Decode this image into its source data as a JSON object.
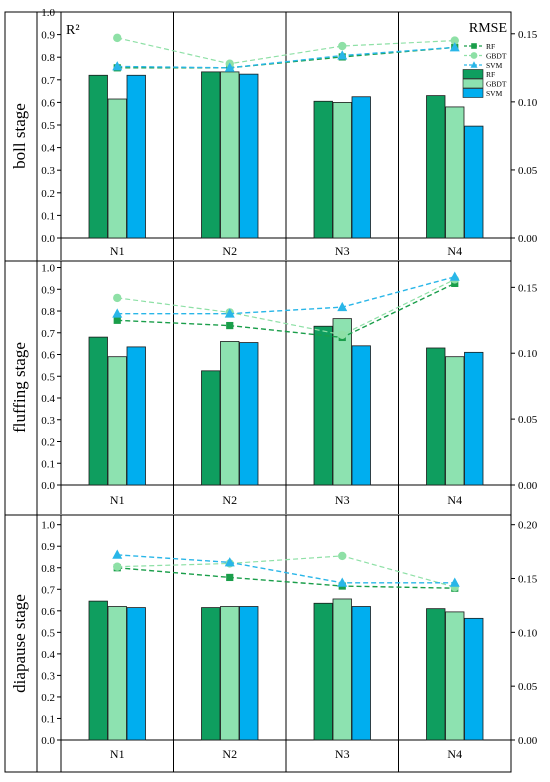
{
  "chart_data": {
    "type": "bar+line",
    "categories": [
      "N1",
      "N2",
      "N3",
      "N4"
    ],
    "left_axis_label": "R²",
    "right_axis_label": "RMSE",
    "legend": {
      "lines": [
        "RF",
        "GBDT",
        "SVM"
      ],
      "bars": [
        "RF",
        "GBDT",
        "SVM"
      ]
    },
    "colors": {
      "RF": "#0f9e5f",
      "GBDT": "#8de2b0",
      "SVM": "#00aeef",
      "RF_line": "#1a9e4a",
      "GBDT_line": "#8ee0a6",
      "SVM_line": "#29b6e8"
    },
    "panels": [
      {
        "stage": "boll stage",
        "r2_ylim": [
          0.0,
          1.0
        ],
        "r2_ticks": [
          "0.0",
          "0.1",
          "0.2",
          "0.3",
          "0.4",
          "0.5",
          "0.6",
          "0.7",
          "0.8",
          "0.9",
          "1.0"
        ],
        "rmse_ylim": [
          0.0,
          0.166
        ],
        "rmse_ticks": [
          "0.00",
          "0.05",
          "0.10",
          "0.15"
        ],
        "r2_bars": {
          "RF": [
            0.72,
            0.735,
            0.605,
            0.63
          ],
          "GBDT": [
            0.615,
            0.735,
            0.6,
            0.58
          ],
          "SVM": [
            0.72,
            0.725,
            0.625,
            0.495
          ]
        },
        "rmse_lines": {
          "RF": [
            0.125,
            0.125,
            0.133,
            0.14
          ],
          "GBDT": [
            0.147,
            0.128,
            0.141,
            0.145
          ],
          "SVM": [
            0.126,
            0.125,
            0.134,
            0.14
          ]
        }
      },
      {
        "stage": "fluffing stage",
        "r2_ylim": [
          0.0,
          1.03
        ],
        "r2_ticks": [
          "0.0",
          "0.1",
          "0.2",
          "0.3",
          "0.4",
          "0.5",
          "0.6",
          "0.7",
          "0.8",
          "0.9",
          "1.0"
        ],
        "rmse_ylim": [
          0.0,
          0.17
        ],
        "rmse_ticks": [
          "0.00",
          "0.05",
          "0.10",
          "0.15"
        ],
        "r2_bars": {
          "RF": [
            0.68,
            0.525,
            0.73,
            0.63
          ],
          "GBDT": [
            0.59,
            0.66,
            0.765,
            0.59
          ],
          "SVM": [
            0.635,
            0.655,
            0.64,
            0.61
          ]
        },
        "rmse_lines": {
          "RF": [
            0.125,
            0.121,
            0.112,
            0.153
          ],
          "GBDT": [
            0.142,
            0.131,
            0.114,
            0.156
          ],
          "SVM": [
            0.13,
            0.13,
            0.135,
            0.158
          ]
        }
      },
      {
        "stage": "diapause stage",
        "r2_ylim": [
          0.0,
          1.045
        ],
        "r2_ticks": [
          "0.0",
          "0.1",
          "0.2",
          "0.3",
          "0.4",
          "0.5",
          "0.6",
          "0.7",
          "0.8",
          "0.9",
          "1.0"
        ],
        "rmse_ylim": [
          0.0,
          0.209
        ],
        "rmse_ticks": [
          "0.00",
          "0.05",
          "0.10",
          "0.15",
          "0.20"
        ],
        "r2_bars": {
          "RF": [
            0.645,
            0.615,
            0.635,
            0.61
          ],
          "GBDT": [
            0.62,
            0.62,
            0.655,
            0.595
          ],
          "SVM": [
            0.615,
            0.62,
            0.62,
            0.565
          ]
        },
        "rmse_lines": {
          "RF": [
            0.16,
            0.151,
            0.143,
            0.141
          ],
          "GBDT": [
            0.161,
            0.164,
            0.171,
            0.142
          ],
          "SVM": [
            0.172,
            0.165,
            0.146,
            0.146
          ]
        }
      }
    ]
  }
}
